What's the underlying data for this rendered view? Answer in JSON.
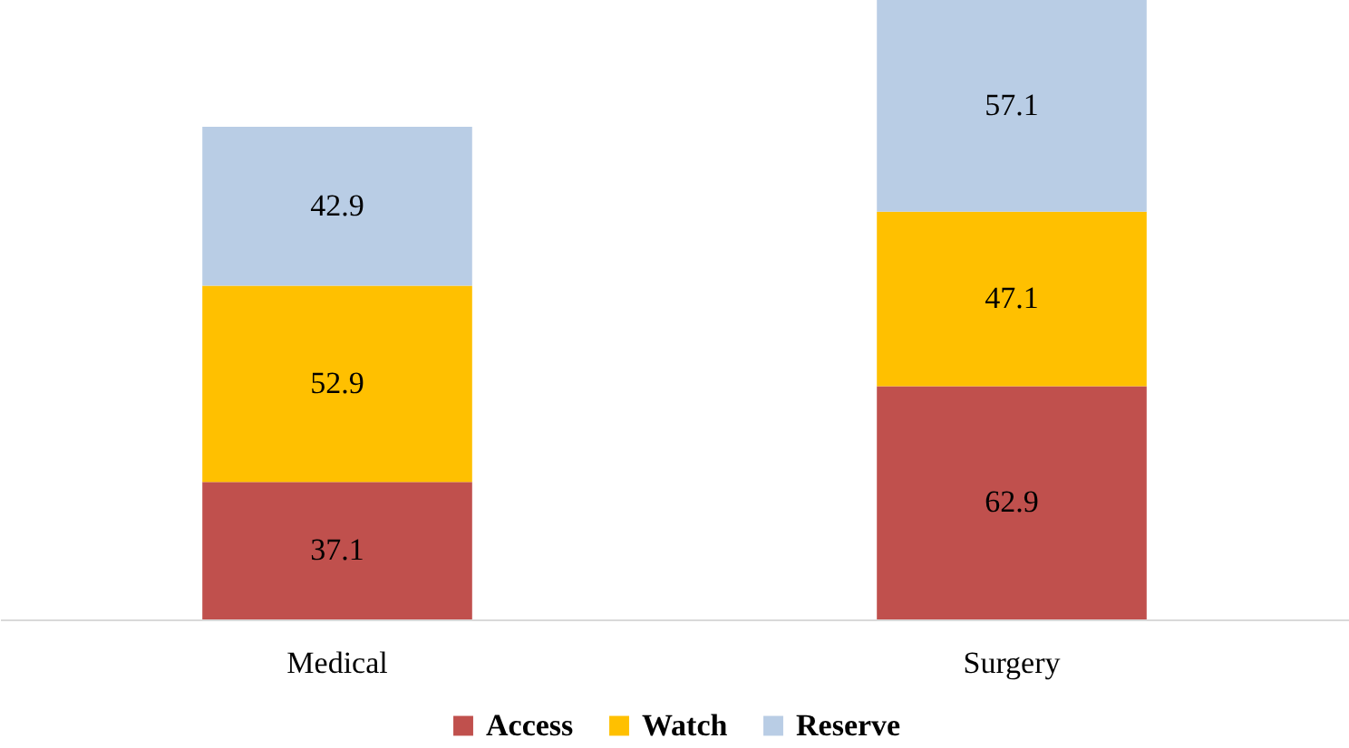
{
  "chart_data": {
    "type": "bar",
    "stacked": true,
    "data_labels": true,
    "categories": [
      "Medical",
      "Surgery"
    ],
    "series": [
      {
        "name": "Access",
        "color": "#c0504d",
        "values": [
          37.1,
          62.9
        ]
      },
      {
        "name": "Watch",
        "color": "#ffc000",
        "values": [
          52.9,
          47.1
        ]
      },
      {
        "name": "Reserve",
        "color": "#b9cde5",
        "values": [
          42.9,
          57.1
        ]
      }
    ],
    "legend": "bottom"
  }
}
